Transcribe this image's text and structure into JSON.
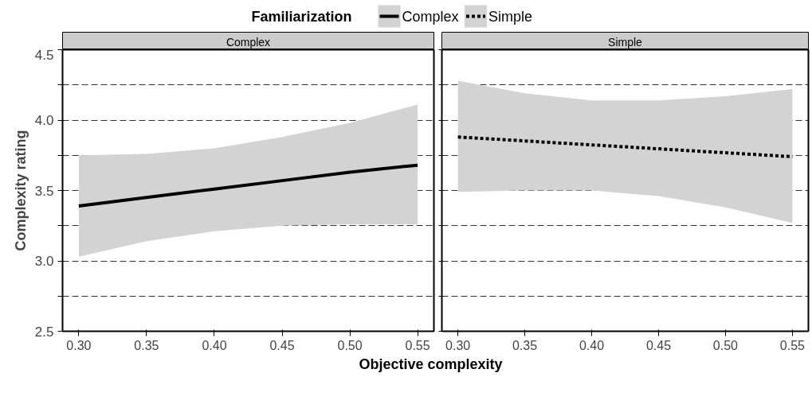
{
  "chart_data": [
    {
      "type": "line",
      "title": "Complex",
      "ylabel": "Complexity rating",
      "xlabel": "Objective complexity",
      "legend_title": "Familiarization",
      "legend": "top",
      "line_style": "solid",
      "grid": "y",
      "x": [
        0.3,
        0.35,
        0.4,
        0.45,
        0.5,
        0.55
      ],
      "xlim": [
        0.288,
        0.562
      ],
      "ylim": [
        2.5,
        4.5
      ],
      "xticks": [
        {
          "value": 0.3,
          "label": "0.30"
        },
        {
          "value": 0.35,
          "label": "0.35"
        },
        {
          "value": 0.4,
          "label": "0.40"
        },
        {
          "value": 0.45,
          "label": "0.45"
        },
        {
          "value": 0.5,
          "label": "0.50"
        },
        {
          "value": 0.55,
          "label": "0.55"
        }
      ],
      "yticks": [
        2.5,
        {
          "value": 2.75,
          "label": null
        },
        {
          "value": 3.0,
          "label": "3.0"
        },
        {
          "value": 3.25,
          "label": null
        },
        3.5,
        {
          "value": 3.75,
          "label": null
        },
        {
          "value": 4.0,
          "label": "4.0"
        },
        {
          "value": 4.25,
          "label": null
        },
        4.5
      ],
      "series": [
        {
          "name": "Complex",
          "color": "#000000",
          "values": [
            3.39,
            3.45,
            3.51,
            3.57,
            3.63,
            3.68
          ],
          "lower": [
            3.03,
            3.14,
            3.21,
            3.25,
            3.26,
            3.26
          ],
          "upper": [
            3.75,
            3.76,
            3.8,
            3.88,
            3.98,
            4.11
          ]
        }
      ]
    },
    {
      "type": "line",
      "title": "Simple",
      "legend": "top",
      "line_style": "dashed",
      "grid": "y",
      "tick_labels": "x",
      "x": [
        0.3,
        0.35,
        0.4,
        0.45,
        0.5,
        0.55
      ],
      "xlim": [
        0.288,
        0.562
      ],
      "ylim": [
        2.5,
        4.5
      ],
      "xticks": [
        {
          "value": 0.3,
          "label": "0.30"
        },
        {
          "value": 0.35,
          "label": "0.35"
        },
        {
          "value": 0.4,
          "label": "0.40"
        },
        {
          "value": 0.45,
          "label": "0.45"
        },
        {
          "value": 0.5,
          "label": "0.50"
        },
        {
          "value": 0.55,
          "label": "0.55"
        }
      ],
      "yticks": [
        {
          "value": 2.5,
          "label": null
        },
        {
          "value": 2.75,
          "label": null
        },
        {
          "value": 3.0,
          "label": null
        },
        {
          "value": 3.25,
          "label": null
        },
        {
          "value": 3.5,
          "label": null
        },
        {
          "value": 3.75,
          "label": null
        },
        {
          "value": 4.0,
          "label": null
        },
        {
          "value": 4.25,
          "label": null
        },
        {
          "value": 4.5,
          "label": null
        }
      ],
      "series": [
        {
          "name": "Simple",
          "color": "#000000",
          "values": [
            3.88,
            3.852,
            3.824,
            3.796,
            3.768,
            3.74
          ],
          "lower": [
            3.49,
            3.5,
            3.5,
            3.46,
            3.38,
            3.27
          ],
          "upper": [
            4.28,
            4.19,
            4.14,
            4.14,
            4.17,
            4.22
          ]
        }
      ]
    }
  ]
}
